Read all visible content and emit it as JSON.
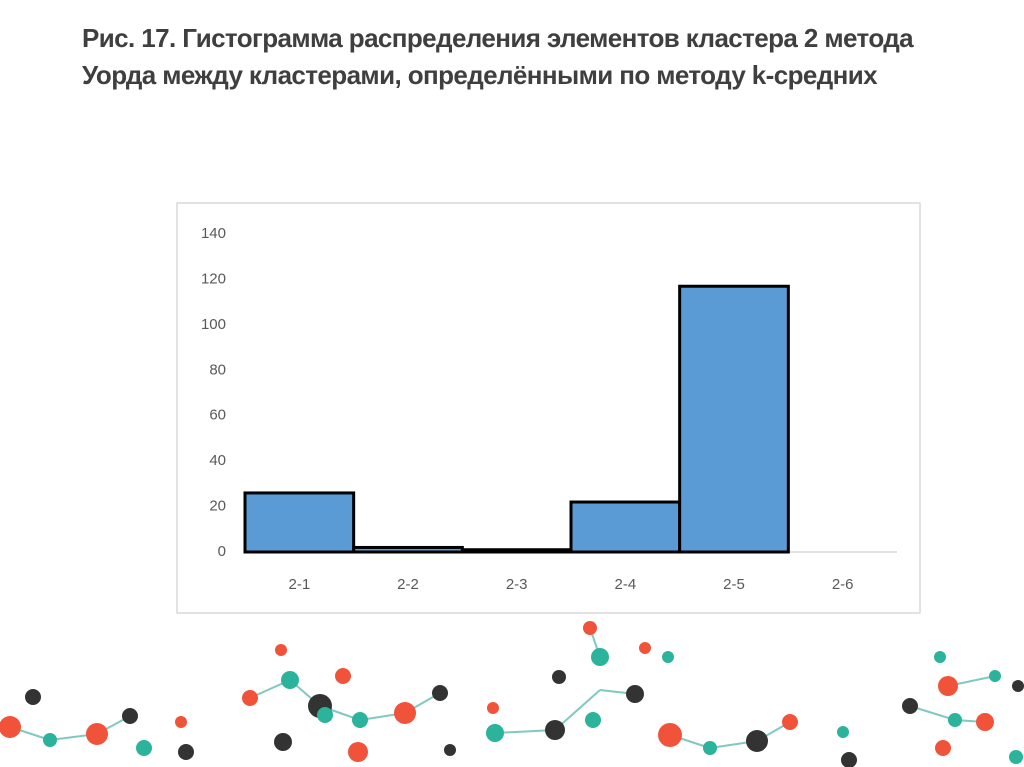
{
  "chart_data": {
    "type": "bar",
    "title": "Рис. 17. Гистограмма распределения элементов кластера 2 метода Уорда между кластерами, определёнными по методу k-средних",
    "categories": [
      "2-1",
      "2-2",
      "2-3",
      "2-4",
      "2-5",
      "2-6"
    ],
    "values": [
      26,
      2,
      1,
      22,
      117,
      0
    ],
    "color": "#5b9bd5",
    "ylim": [
      0,
      140
    ],
    "yticks": [
      0,
      20,
      40,
      60,
      80,
      100,
      120,
      140
    ],
    "grid": false
  }
}
